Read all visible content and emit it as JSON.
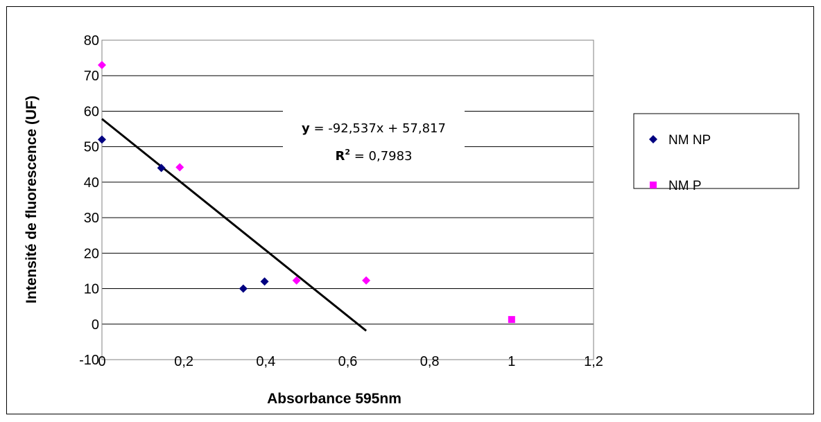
{
  "chart_data": {
    "type": "scatter",
    "xlabel": "Absorbance 595nm",
    "ylabel": "Intensité de fluorescence (UF)",
    "xlim": [
      0,
      1.2
    ],
    "ylim": [
      -10,
      80
    ],
    "x_ticks": [
      "0",
      "0,2",
      "0,4",
      "0,6",
      "0,8",
      "1",
      "1,2"
    ],
    "y_ticks": [
      "80",
      "70",
      "60",
      "50",
      "40",
      "30",
      "20",
      "10",
      "0",
      "-10"
    ],
    "grid": "horizontal",
    "legend_position": "right",
    "series": [
      {
        "name": "NM NP",
        "color": "#000080",
        "marker": "diamond",
        "points": [
          [
            0,
            52
          ],
          [
            0.145,
            44
          ],
          [
            0.345,
            10
          ],
          [
            0.397,
            12
          ]
        ]
      },
      {
        "name": "NM P",
        "color": "#ff00ff",
        "marker": "square",
        "points": [
          [
            0,
            73
          ],
          [
            0.19,
            44.2
          ],
          [
            0.475,
            12.3
          ],
          [
            0.645,
            12.3
          ],
          [
            1.0,
            1.3
          ]
        ],
        "point_markers": [
          "diamond",
          "diamond",
          "diamond",
          "diamond",
          "square"
        ]
      }
    ],
    "trendline": {
      "slope": -92.537,
      "intercept": 57.817,
      "x_range": [
        0,
        0.645
      ],
      "color": "#000000",
      "equation_prefix": "y",
      "equation_rest": " = -92,537x + 57,817",
      "r2_prefix": "R",
      "r2_sup": "2",
      "r2_rest": " = 0,7983"
    }
  }
}
